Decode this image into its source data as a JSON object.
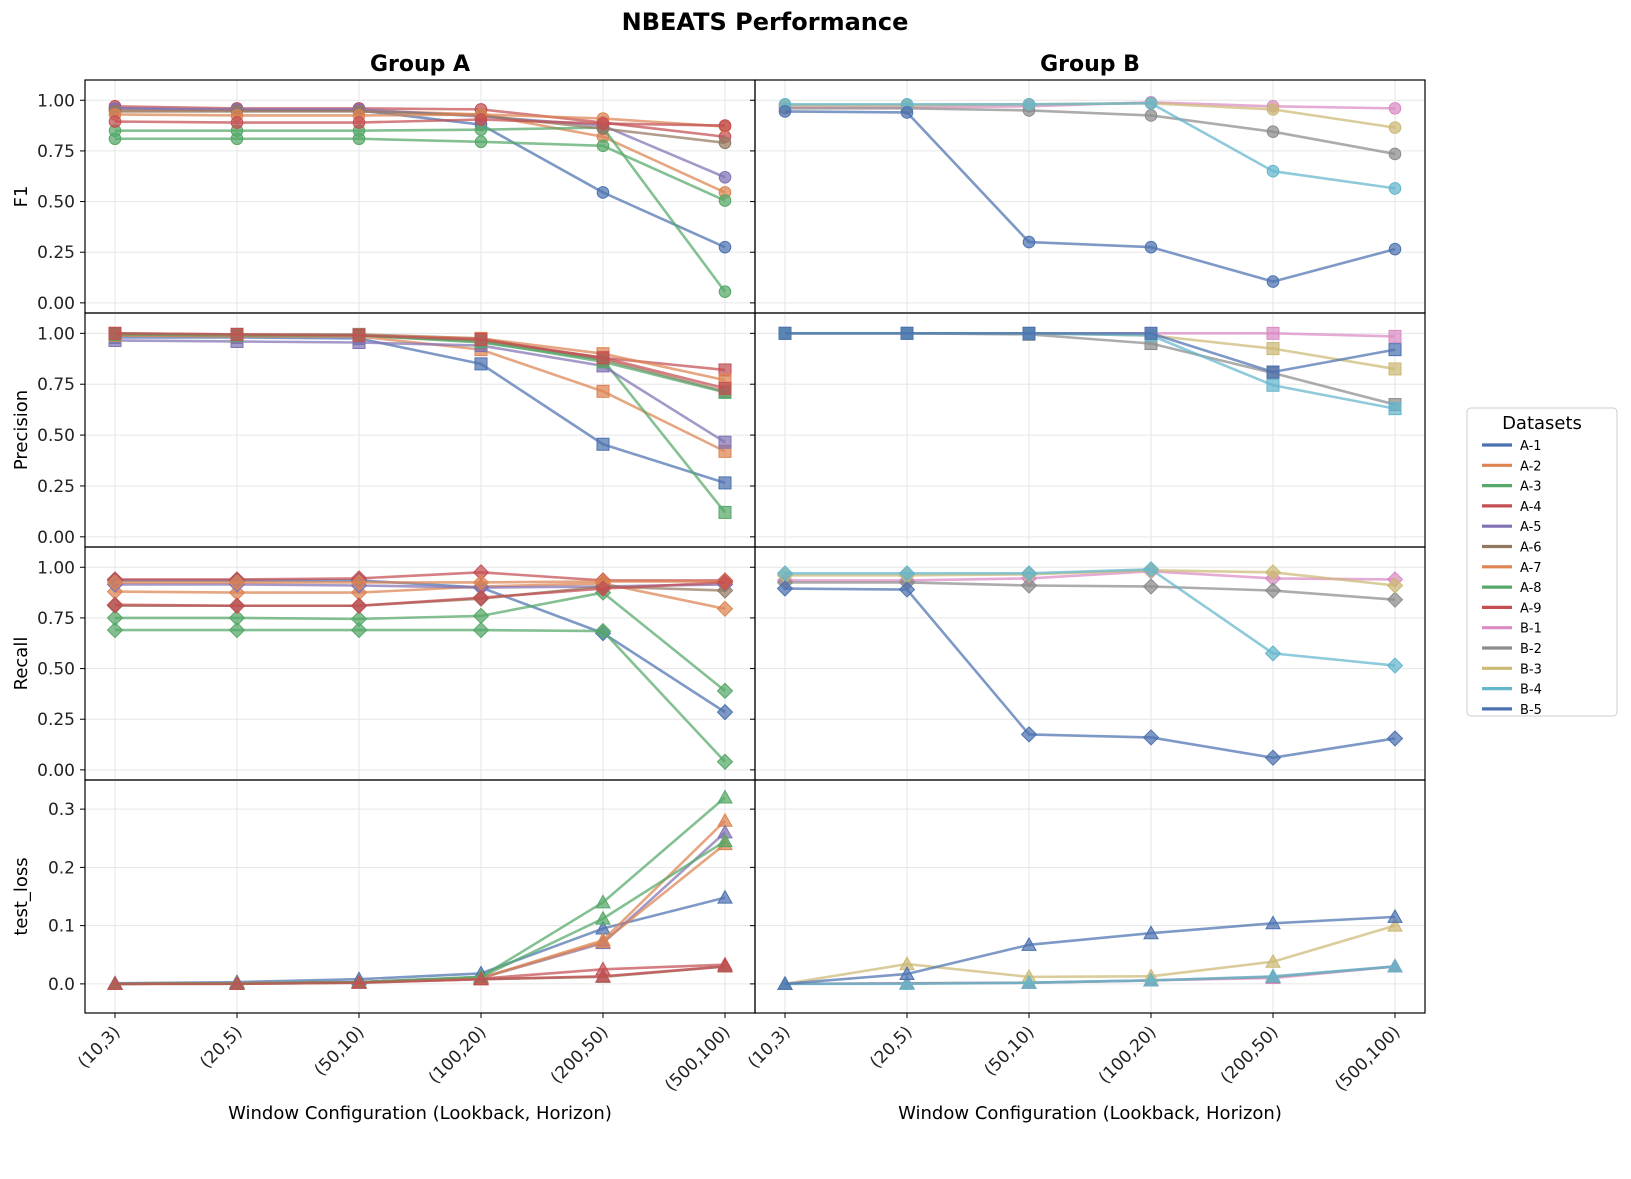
{
  "title": "NBEATS Performance",
  "chart_data": {
    "type": "line",
    "title": "NBEATS Performance",
    "columns": [
      "Group A",
      "Group B"
    ],
    "metrics": [
      "F1",
      "Precision",
      "Recall",
      "test_loss"
    ],
    "xlabel": "Window Configuration (Lookback, Horizon)",
    "categories": [
      "(10,3)",
      "(20,5)",
      "(50,10)",
      "(100,20)",
      "(200,50)",
      "(500,100)"
    ],
    "ylims": {
      "F1": [
        -0.05,
        1.1
      ],
      "Precision": [
        -0.05,
        1.1
      ],
      "Recall": [
        -0.05,
        1.1
      ],
      "test_loss": [
        -0.05,
        0.35
      ]
    },
    "yticks": {
      "F1": [
        "0.00",
        "0.25",
        "0.50",
        "0.75",
        "1.00"
      ],
      "Precision": [
        "0.00",
        "0.25",
        "0.50",
        "0.75",
        "1.00"
      ],
      "Recall": [
        "0.00",
        "0.25",
        "0.50",
        "0.75",
        "1.00"
      ],
      "test_loss": [
        "0.0",
        "0.1",
        "0.2",
        "0.3"
      ]
    },
    "markers": {
      "F1": "circle",
      "Precision": "square",
      "Recall": "diamond",
      "test_loss": "triangle"
    },
    "legend": {
      "title": "Datasets",
      "position": "right",
      "items": [
        {
          "name": "A-1",
          "color": "#4c72b0"
        },
        {
          "name": "A-2",
          "color": "#dd8452"
        },
        {
          "name": "A-3",
          "color": "#55a868"
        },
        {
          "name": "A-4",
          "color": "#c44e52"
        },
        {
          "name": "A-5",
          "color": "#8172b3"
        },
        {
          "name": "A-6",
          "color": "#937860"
        },
        {
          "name": "A-7",
          "color": "#dd8452"
        },
        {
          "name": "A-8",
          "color": "#55a868"
        },
        {
          "name": "A-9",
          "color": "#c44e52"
        },
        {
          "name": "B-1",
          "color": "#da8bc3"
        },
        {
          "name": "B-2",
          "color": "#8c8c8c"
        },
        {
          "name": "B-3",
          "color": "#ccb974"
        },
        {
          "name": "B-4",
          "color": "#64b5cd"
        },
        {
          "name": "B-5",
          "color": "#4c72b0"
        }
      ]
    },
    "series": {
      "Group A": {
        "F1": [
          {
            "name": "A-1",
            "values": [
              0.96,
              0.95,
              0.95,
              0.88,
              0.545,
              0.275
            ]
          },
          {
            "name": "A-2",
            "values": [
              0.95,
              0.95,
              0.95,
              0.93,
              0.82,
              0.545
            ]
          },
          {
            "name": "A-3",
            "values": [
              0.85,
              0.85,
              0.85,
              0.855,
              0.865,
              0.055
            ]
          },
          {
            "name": "A-4",
            "values": [
              0.97,
              0.96,
              0.96,
              0.955,
              0.89,
              0.82
            ]
          },
          {
            "name": "A-5",
            "values": [
              0.96,
              0.955,
              0.955,
              0.92,
              0.875,
              0.62
            ]
          },
          {
            "name": "A-6",
            "values": [
              0.945,
              0.945,
              0.945,
              0.925,
              0.86,
              0.79
            ]
          },
          {
            "name": "A-7",
            "values": [
              0.93,
              0.925,
              0.925,
              0.93,
              0.91,
              0.87
            ]
          },
          {
            "name": "A-8",
            "values": [
              0.81,
              0.81,
              0.81,
              0.795,
              0.775,
              0.505
            ]
          },
          {
            "name": "A-9",
            "values": [
              0.895,
              0.89,
              0.89,
              0.905,
              0.885,
              0.875
            ]
          }
        ],
        "Precision": [
          {
            "name": "A-1",
            "values": [
              0.98,
              0.98,
              0.975,
              0.85,
              0.455,
              0.265
            ]
          },
          {
            "name": "A-2",
            "values": [
              0.99,
              0.985,
              0.985,
              0.92,
              0.715,
              0.42
            ]
          },
          {
            "name": "A-3",
            "values": [
              0.995,
              0.99,
              0.99,
              0.955,
              0.87,
              0.12
            ]
          },
          {
            "name": "A-4",
            "values": [
              0.995,
              0.99,
              0.99,
              0.965,
              0.88,
              0.82
            ]
          },
          {
            "name": "A-5",
            "values": [
              0.965,
              0.96,
              0.955,
              0.94,
              0.84,
              0.465
            ]
          },
          {
            "name": "A-6",
            "values": [
              1.0,
              0.995,
              0.995,
              0.975,
              0.87,
              0.715
            ]
          },
          {
            "name": "A-7",
            "values": [
              0.99,
              0.99,
              0.99,
              0.975,
              0.9,
              0.77
            ]
          },
          {
            "name": "A-8",
            "values": [
              0.995,
              0.99,
              0.99,
              0.96,
              0.86,
              0.71
            ]
          },
          {
            "name": "A-9",
            "values": [
              1.0,
              0.995,
              0.99,
              0.97,
              0.88,
              0.73
            ]
          }
        ],
        "Recall": [
          {
            "name": "A-1",
            "values": [
              0.935,
              0.935,
              0.935,
              0.9,
              0.675,
              0.285
            ]
          },
          {
            "name": "A-2",
            "values": [
              0.88,
              0.875,
              0.875,
              0.905,
              0.92,
              0.795
            ]
          },
          {
            "name": "A-3",
            "values": [
              0.75,
              0.75,
              0.745,
              0.76,
              0.875,
              0.39
            ]
          },
          {
            "name": "A-4",
            "values": [
              0.94,
              0.94,
              0.945,
              0.975,
              0.935,
              0.935
            ]
          },
          {
            "name": "A-5",
            "values": [
              0.915,
              0.915,
              0.91,
              0.9,
              0.905,
              0.915
            ]
          },
          {
            "name": "A-6",
            "values": [
              0.81,
              0.81,
              0.81,
              0.845,
              0.905,
              0.885
            ]
          },
          {
            "name": "A-7",
            "values": [
              0.925,
              0.925,
              0.925,
              0.925,
              0.93,
              0.93
            ]
          },
          {
            "name": "A-8",
            "values": [
              0.69,
              0.69,
              0.69,
              0.69,
              0.685,
              0.04
            ]
          },
          {
            "name": "A-9",
            "values": [
              0.815,
              0.81,
              0.81,
              0.85,
              0.895,
              0.925
            ]
          }
        ],
        "test_loss": [
          {
            "name": "A-1",
            "values": [
              0.001,
              0.003,
              0.008,
              0.018,
              0.095,
              0.148
            ]
          },
          {
            "name": "A-2",
            "values": [
              0.0,
              0.001,
              0.003,
              0.01,
              0.075,
              0.28
            ]
          },
          {
            "name": "A-3",
            "values": [
              0.0,
              0.001,
              0.003,
              0.012,
              0.14,
              0.32
            ]
          },
          {
            "name": "A-4",
            "values": [
              0.0,
              0.001,
              0.003,
              0.009,
              0.025,
              0.033
            ]
          },
          {
            "name": "A-5",
            "values": [
              0.0,
              0.001,
              0.003,
              0.01,
              0.07,
              0.26
            ]
          },
          {
            "name": "A-6",
            "values": [
              0.0,
              0.0,
              0.002,
              0.008,
              0.012,
              0.03
            ]
          },
          {
            "name": "A-7",
            "values": [
              0.0,
              0.001,
              0.003,
              0.01,
              0.072,
              0.24
            ]
          },
          {
            "name": "A-8",
            "values": [
              0.0,
              0.001,
              0.003,
              0.012,
              0.112,
              0.245
            ]
          },
          {
            "name": "A-9",
            "values": [
              0.0,
              0.0,
              0.002,
              0.008,
              0.013,
              0.03
            ]
          }
        ]
      },
      "Group B": {
        "F1": [
          {
            "name": "B-1",
            "values": [
              0.965,
              0.965,
              0.97,
              0.99,
              0.97,
              0.96
            ]
          },
          {
            "name": "B-2",
            "values": [
              0.96,
              0.96,
              0.95,
              0.925,
              0.845,
              0.735
            ]
          },
          {
            "name": "B-3",
            "values": [
              0.975,
              0.975,
              0.98,
              0.985,
              0.955,
              0.865
            ]
          },
          {
            "name": "B-4",
            "values": [
              0.98,
              0.98,
              0.98,
              0.985,
              0.65,
              0.565
            ]
          },
          {
            "name": "B-5",
            "values": [
              0.945,
              0.94,
              0.3,
              0.275,
              0.105,
              0.265
            ]
          }
        ],
        "Precision": [
          {
            "name": "B-1",
            "values": [
              1.0,
              1.0,
              1.0,
              1.0,
              1.0,
              0.985
            ]
          },
          {
            "name": "B-2",
            "values": [
              1.0,
              1.0,
              0.995,
              0.95,
              0.805,
              0.65
            ]
          },
          {
            "name": "B-3",
            "values": [
              1.0,
              1.0,
              1.0,
              0.99,
              0.925,
              0.825
            ]
          },
          {
            "name": "B-4",
            "values": [
              1.0,
              1.0,
              1.0,
              0.99,
              0.745,
              0.63
            ]
          },
          {
            "name": "B-5",
            "values": [
              1.0,
              1.0,
              1.0,
              1.0,
              0.81,
              0.92
            ]
          }
        ],
        "Recall": [
          {
            "name": "B-1",
            "values": [
              0.935,
              0.935,
              0.945,
              0.98,
              0.945,
              0.94
            ]
          },
          {
            "name": "B-2",
            "values": [
              0.925,
              0.925,
              0.91,
              0.905,
              0.885,
              0.84
            ]
          },
          {
            "name": "B-3",
            "values": [
              0.96,
              0.96,
              0.965,
              0.985,
              0.975,
              0.91
            ]
          },
          {
            "name": "B-4",
            "values": [
              0.97,
              0.97,
              0.97,
              0.99,
              0.575,
              0.515
            ]
          },
          {
            "name": "B-5",
            "values": [
              0.895,
              0.89,
              0.175,
              0.16,
              0.06,
              0.155
            ]
          }
        ],
        "test_loss": [
          {
            "name": "B-1",
            "values": [
              0.0,
              0.001,
              0.002,
              0.006,
              0.01,
              0.03
            ]
          },
          {
            "name": "B-2",
            "values": [
              0.0,
              0.001,
              0.002,
              0.006,
              0.012,
              0.03
            ]
          },
          {
            "name": "B-3",
            "values": [
              0.0,
              0.034,
              0.012,
              0.013,
              0.038,
              0.1
            ]
          },
          {
            "name": "B-4",
            "values": [
              0.0,
              0.0,
              0.002,
              0.006,
              0.013,
              0.03
            ]
          },
          {
            "name": "B-5",
            "values": [
              0.0,
              0.017,
              0.067,
              0.087,
              0.104,
              0.115
            ]
          }
        ]
      }
    }
  }
}
